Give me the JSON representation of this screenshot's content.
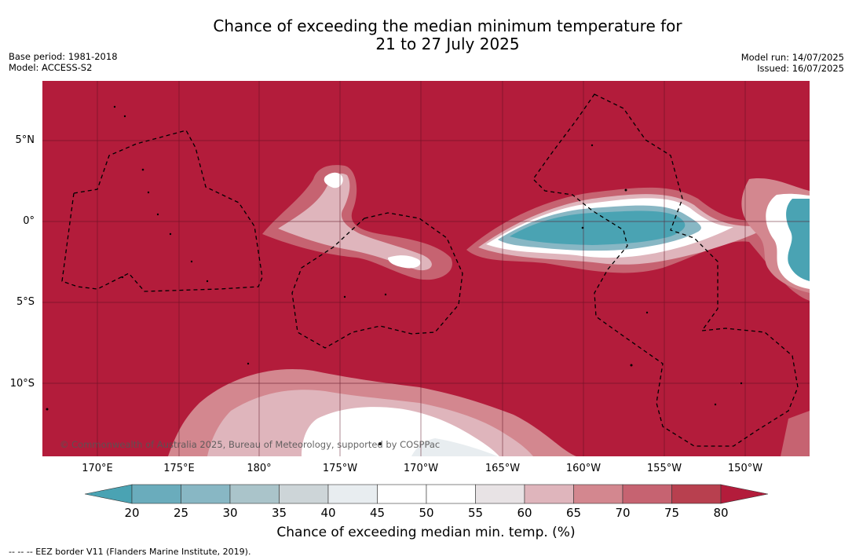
{
  "title": {
    "line1": "Chance of exceeding the median minimum temperature for",
    "line2": "21 to 27 July 2025"
  },
  "meta_left": {
    "base_period": "Base period: 1981-2018",
    "model": "Model: ACCESS-S2"
  },
  "meta_right": {
    "model_run": "Model run: 14/07/2025",
    "issued": "Issued: 16/07/2025"
  },
  "map": {
    "lat_labels": [
      "5°N",
      "0°",
      "5°S",
      "10°S"
    ],
    "lon_labels": [
      "170°E",
      "175°E",
      "180°",
      "175°W",
      "170°W",
      "165°W",
      "160°W",
      "155°W",
      "150°W"
    ],
    "copyright": "© Commonwealth of Australia 2025, Bureau of Meteorology, supported by COSPPac"
  },
  "colorbar": {
    "ticks": [
      "20",
      "25",
      "30",
      "35",
      "40",
      "45",
      "50",
      "55",
      "60",
      "65",
      "70",
      "75",
      "80"
    ],
    "colors": [
      "#4aa3b3",
      "#6aacbc",
      "#88b7c4",
      "#aac4ca",
      "#cdd5d8",
      "#e8edf0",
      "#ffffff",
      "#ffffff",
      "#e8e3e5",
      "#dfb5bc",
      "#d3878f",
      "#c66371",
      "#b8404f",
      "#b31c3b"
    ],
    "label": "Chance of exceeding median min. temp. (%)"
  },
  "footnote": "--  --  -- EEZ border V11 (Flanders Marine Institute, 2019)."
}
